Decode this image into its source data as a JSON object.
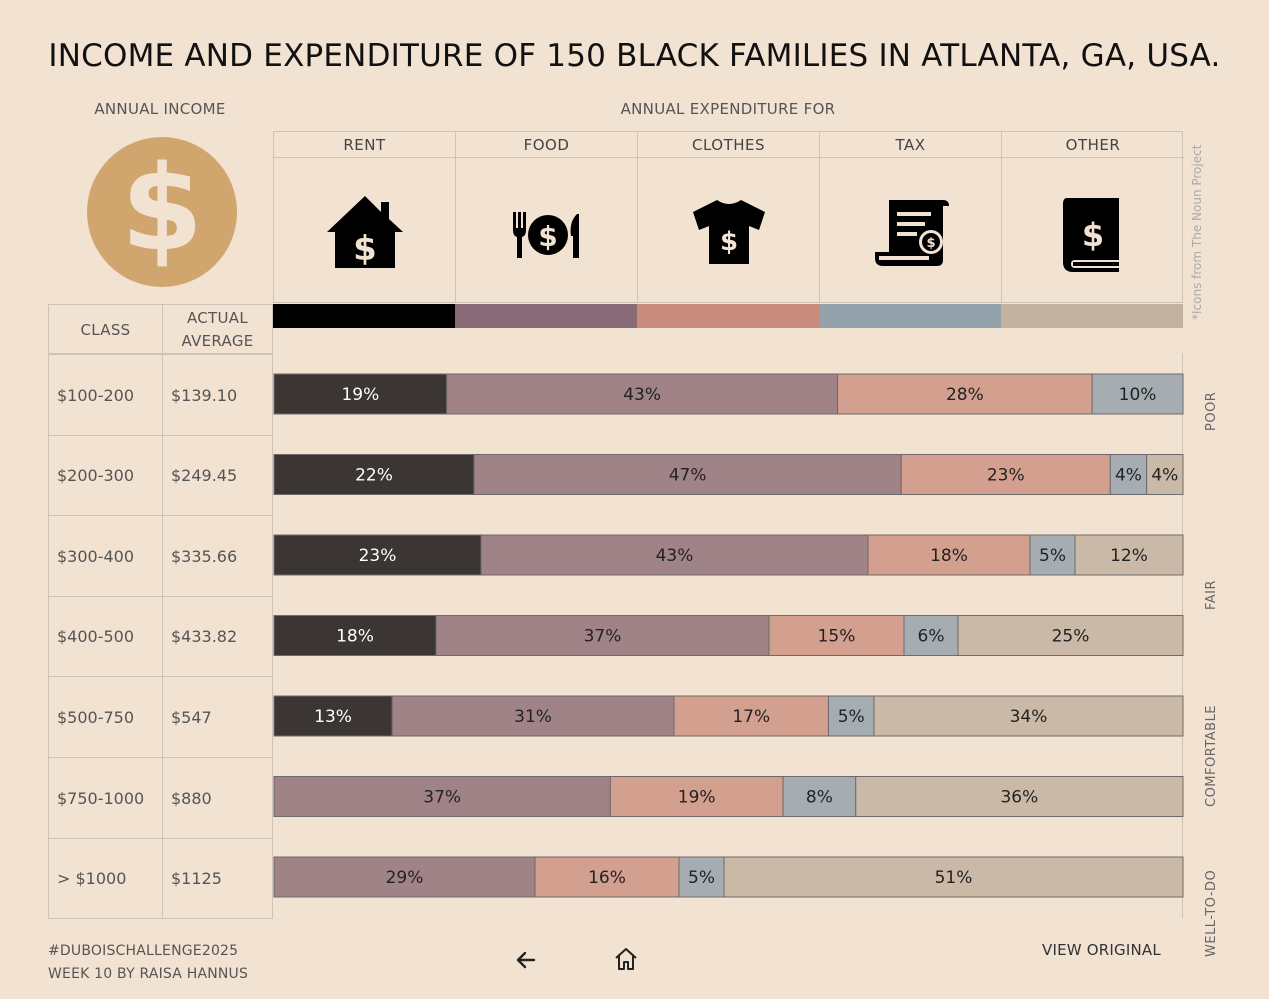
{
  "title": "INCOME AND EXPENDITURE OF 150 BLACK FAMILIES IN ATLANTA, GA, USA.",
  "headers": {
    "annual_income": "ANNUAL INCOME",
    "annual_expenditure": "ANNUAL EXPENDITURE FOR"
  },
  "categories": [
    {
      "name": "RENT",
      "icon": "house-dollar-icon",
      "color": "#000000"
    },
    {
      "name": "FOOD",
      "icon": "plate-dollar-icon",
      "color": "#876a75"
    },
    {
      "name": "CLOTHES",
      "icon": "shirt-dollar-icon",
      "color": "#c98b7c"
    },
    {
      "name": "TAX",
      "icon": "receipt-dollar-icon",
      "color": "#93a1ab"
    },
    {
      "name": "OTHER",
      "icon": "book-dollar-icon",
      "color": "#c3b1a1"
    }
  ],
  "bar_colors": {
    "RENT": "#3b3633",
    "FOOD": "#a08387",
    "CLOTHES": "#d39f8e",
    "TAX": "#a6adb2",
    "OTHER": "#cbb9a7"
  },
  "icon_credit": "*Icons from The Noun Project",
  "table": {
    "col_class": "CLASS",
    "col_actual": "ACTUAL AVERAGE",
    "rows": [
      {
        "class": "$100-200",
        "average": "$139.10"
      },
      {
        "class": "$200-300",
        "average": "$249.45"
      },
      {
        "class": "$300-400",
        "average": "$335.66"
      },
      {
        "class": "$400-500",
        "average": "$433.82"
      },
      {
        "class": "$500-750",
        "average": "$547"
      },
      {
        "class": "$750-1000",
        "average": "$880"
      },
      {
        "class": "> $1000",
        "average": "$1125"
      }
    ]
  },
  "groups": [
    {
      "label": "POOR",
      "rows": [
        0,
        1
      ]
    },
    {
      "label": "FAIR",
      "rows": [
        2,
        3
      ]
    },
    {
      "label": "COMFORTABLE",
      "rows": [
        4,
        5
      ]
    },
    {
      "label": "WELL-TO-DO",
      "rows": [
        6
      ]
    }
  ],
  "chart_data": {
    "type": "bar",
    "orientation": "horizontal",
    "stacked": true,
    "normalized": true,
    "categories": [
      "$100-200",
      "$200-300",
      "$300-400",
      "$400-500",
      "$500-750",
      "$750-1000",
      "> $1000"
    ],
    "series": [
      {
        "name": "RENT",
        "values": [
          19,
          22,
          23,
          18,
          13,
          0,
          0
        ]
      },
      {
        "name": "FOOD",
        "values": [
          43,
          47,
          43,
          37,
          31,
          37,
          29
        ]
      },
      {
        "name": "CLOTHES",
        "values": [
          28,
          23,
          18,
          15,
          17,
          19,
          16
        ]
      },
      {
        "name": "TAX",
        "values": [
          10,
          4,
          5,
          6,
          5,
          8,
          5
        ]
      },
      {
        "name": "OTHER",
        "values": [
          0,
          4,
          12,
          25,
          34,
          36,
          51
        ]
      }
    ],
    "unit": "%"
  },
  "footer": {
    "hashtag": "#DUBOISCHALLENGE2025",
    "byline": "WEEK 10 BY RAISA HANNUS",
    "view_original": "VIEW ORIGINAL"
  }
}
